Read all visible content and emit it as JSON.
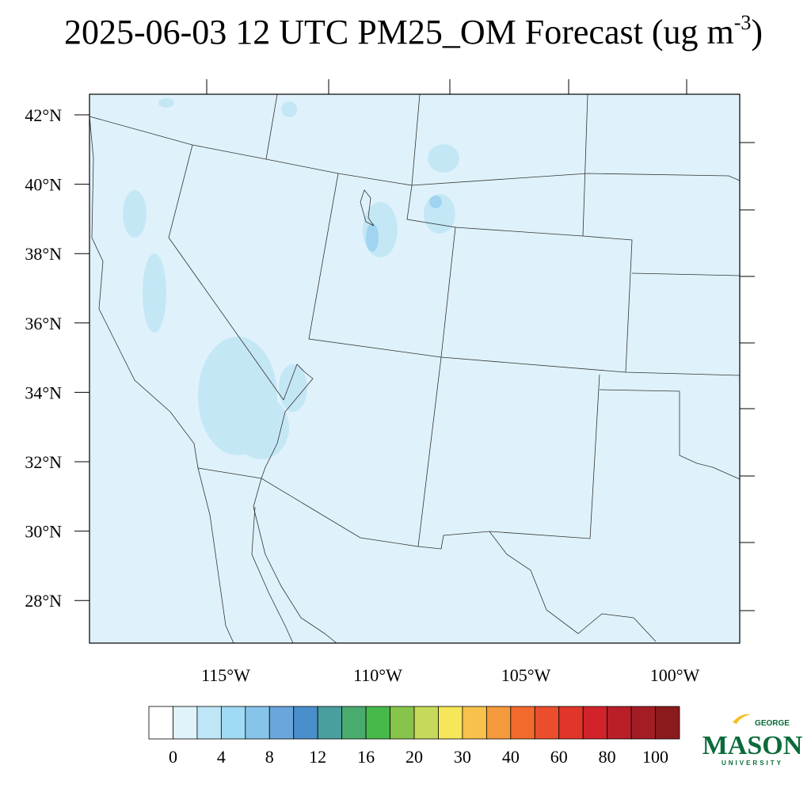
{
  "title": {
    "text": "2025-06-03 12 UTC PM25_OM Forecast (ug m",
    "superscript": "-3",
    "suffix": ")"
  },
  "latitudes": [
    "42°N",
    "40°N",
    "38°N",
    "36°N",
    "34°N",
    "32°N",
    "30°N",
    "28°N"
  ],
  "longitudes": [
    "115°W",
    "110°W",
    "105°W",
    "100°W"
  ],
  "colorbar": {
    "colors": [
      "#ffffff",
      "#e0f3fb",
      "#bfe6f6",
      "#a0daf4",
      "#86c4ea",
      "#6aa6dc",
      "#4a8fcc",
      "#4a9e9e",
      "#4aab6f",
      "#46b94a",
      "#87c44b",
      "#c6d95a",
      "#f5e65a",
      "#f7c14c",
      "#f59a3c",
      "#f26a2e",
      "#ea4e2c",
      "#e0362a",
      "#d2232a",
      "#b81f27",
      "#a41c24",
      "#8b1a1c"
    ],
    "labels": [
      0,
      4,
      8,
      12,
      16,
      20,
      30,
      40,
      60,
      80,
      100
    ]
  },
  "logo": {
    "top": "GEORGE",
    "main": "MASON",
    "bottom": "UNIVERSITY"
  }
}
